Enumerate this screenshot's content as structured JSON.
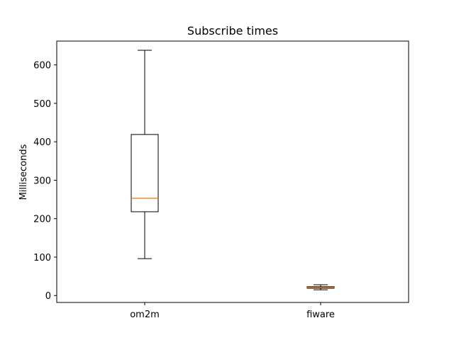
{
  "chart_data": {
    "type": "box",
    "title": "Subscribe times",
    "xlabel": "",
    "ylabel": "Milliseconds",
    "ylim": [
      -18,
      662
    ],
    "yticks": [
      0,
      100,
      200,
      300,
      400,
      500,
      600
    ],
    "grid": false,
    "categories": [
      "om2m",
      "fiware"
    ],
    "boxes": [
      {
        "name": "om2m",
        "whisker_low": 96,
        "q1": 218,
        "median": 253,
        "q3": 419,
        "whisker_high": 638
      },
      {
        "name": "fiware",
        "whisker_low": 15,
        "q1": 19,
        "median": 21,
        "q3": 23,
        "whisker_high": 28
      }
    ],
    "colors": {
      "box": "#000000",
      "median": "#ff7f0e",
      "axes": "#000000"
    }
  }
}
